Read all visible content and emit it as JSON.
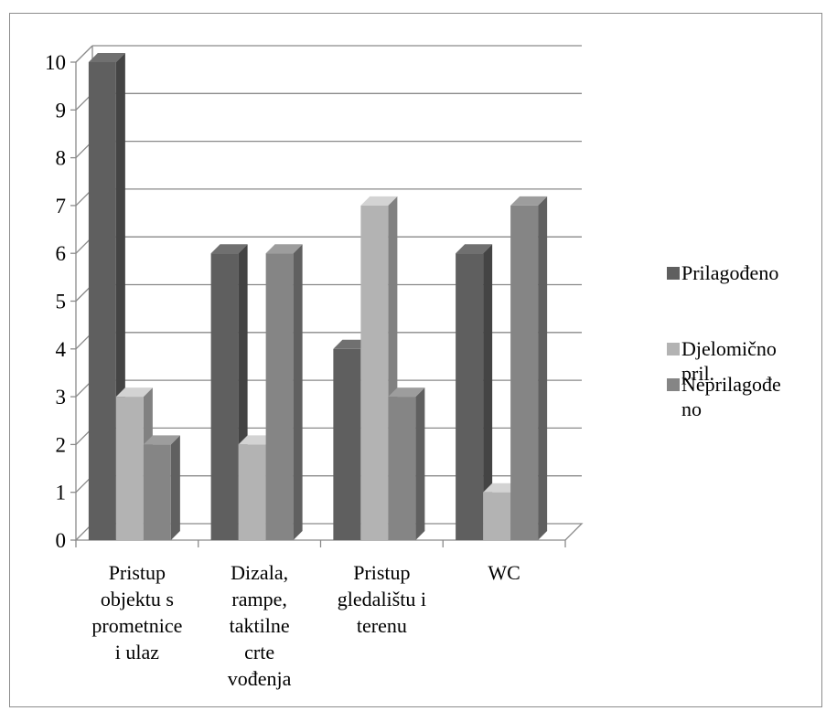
{
  "chart_data": {
    "type": "bar",
    "categories": [
      [
        "Pristup",
        "objektu s",
        "prometnice",
        "i ulaz"
      ],
      [
        "Dizala,",
        "rampe,",
        "taktilne",
        "crte",
        "vođenja"
      ],
      [
        "Pristup",
        "gledalištu i",
        "terenu"
      ],
      [
        "WC"
      ]
    ],
    "series": [
      {
        "name": "Prilagođeno",
        "values": [
          10,
          6,
          4,
          6
        ],
        "color": "#5f5f5f"
      },
      {
        "name": "Djelomično pril.",
        "values": [
          3,
          2,
          7,
          1
        ],
        "color": "#b3b3b3"
      },
      {
        "name": "Neprilagođeno",
        "values": [
          2,
          6,
          3,
          7
        ],
        "color": "#858585"
      }
    ],
    "legend_lines": [
      [
        "Prilagođeno"
      ],
      [
        "Djelomično",
        "pril."
      ],
      [
        "Neprilagođe",
        "no"
      ]
    ],
    "yticks": [
      "0",
      "1",
      "2",
      "3",
      "4",
      "5",
      "6",
      "7",
      "8",
      "9",
      "10"
    ],
    "ylim": [
      0,
      10
    ],
    "grid": true,
    "legend_position": "right",
    "title": "",
    "xlabel": "",
    "ylabel": ""
  }
}
